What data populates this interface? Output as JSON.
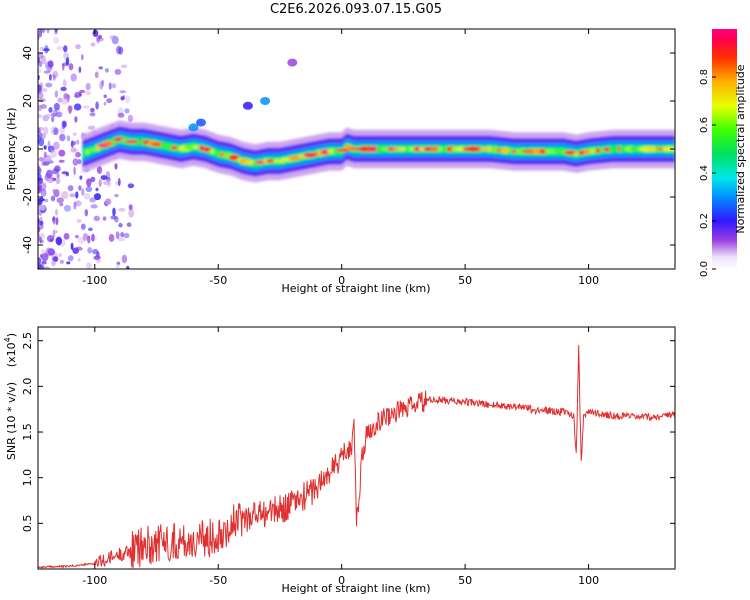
{
  "title": "C2E6.2026.093.07.15.G05",
  "chart_data": [
    {
      "type": "heatmap",
      "name": "spectrogram",
      "xlabel": "Height of straight line (km)",
      "ylabel": "Frequency (Hz)",
      "xlim": [
        -123,
        135
      ],
      "ylim": [
        -50,
        50
      ],
      "xticks": [
        -100,
        -50,
        0,
        50,
        100
      ],
      "yticks": [
        -40,
        -20,
        0,
        20,
        40
      ],
      "colorbar": {
        "label": "Normalized spectral amplitude",
        "range": [
          0,
          1
        ],
        "ticks": [
          "0.0",
          "0.2",
          "0.4",
          "0.6",
          "0.8"
        ],
        "tick_values": [
          0,
          0.2,
          0.4,
          0.6,
          0.8
        ]
      },
      "ridge": {
        "x": [
          -105,
          -100,
          -95,
          -90,
          -85,
          -80,
          -75,
          -70,
          -65,
          -60,
          -55,
          -50,
          -45,
          -40,
          -35,
          -30,
          -25,
          -20,
          -15,
          -10,
          -5,
          0,
          2,
          5,
          10,
          20,
          30,
          40,
          50,
          60,
          70,
          80,
          90,
          95,
          100,
          110,
          120,
          135
        ],
        "y": [
          -2,
          0,
          2,
          4,
          3,
          3,
          2,
          1,
          0,
          1,
          0,
          -2,
          -3,
          -5,
          -6,
          -5,
          -5,
          -4,
          -3,
          -2,
          -1,
          -1,
          1,
          0,
          0,
          0,
          0,
          0,
          0,
          0,
          -1,
          -1,
          -1,
          -2,
          -1,
          0,
          0,
          0
        ]
      },
      "blobs": [
        {
          "x": -60,
          "y": 9,
          "value": 0.3
        },
        {
          "x": -57,
          "y": 11,
          "value": 0.25
        },
        {
          "x": -38,
          "y": 18,
          "value": 0.2
        },
        {
          "x": -31,
          "y": 20,
          "value": 0.3
        },
        {
          "x": -20,
          "y": 36,
          "value": 0.12
        }
      ]
    },
    {
      "type": "line",
      "name": "snr",
      "xlabel": "Height of straight line (km)",
      "ylabel": "SNR (10 * v/v)",
      "multiplier": "(x10",
      "multiplier_exp": "4",
      "xlim": [
        -123,
        135
      ],
      "ylim": [
        0,
        2.65
      ],
      "xticks": [
        -100,
        -50,
        0,
        50,
        100
      ],
      "yticks": [
        0.5,
        1.0,
        1.5,
        2.0,
        2.5
      ],
      "ytick_labels": [
        "0.5",
        "1.0",
        "1.5",
        "2.0",
        "2.5"
      ],
      "color": "#e03030",
      "x": [
        -123,
        -110,
        -100,
        -95,
        -90,
        -85,
        -80,
        -75,
        -70,
        -65,
        -60,
        -55,
        -50,
        -45,
        -40,
        -35,
        -30,
        -25,
        -20,
        -15,
        -10,
        -5,
        -2,
        0,
        2,
        4,
        5,
        6,
        7,
        8,
        10,
        12,
        15,
        20,
        25,
        30,
        35,
        40,
        50,
        60,
        70,
        75,
        78,
        80,
        85,
        90,
        94,
        95,
        96,
        97,
        98,
        100,
        110,
        120,
        135
      ],
      "y": [
        0.02,
        0.03,
        0.06,
        0.1,
        0.16,
        0.2,
        0.25,
        0.28,
        0.3,
        0.3,
        0.3,
        0.32,
        0.4,
        0.48,
        0.55,
        0.6,
        0.62,
        0.65,
        0.72,
        0.8,
        0.9,
        1.05,
        1.15,
        1.25,
        1.3,
        1.35,
        1.7,
        0.5,
        0.7,
        1.2,
        1.45,
        1.55,
        1.62,
        1.7,
        1.75,
        1.8,
        1.85,
        1.85,
        1.83,
        1.8,
        1.78,
        1.78,
        1.72,
        1.75,
        1.73,
        1.72,
        1.68,
        1.25,
        2.45,
        1.15,
        1.7,
        1.72,
        1.68,
        1.66,
        1.68
      ]
    }
  ]
}
